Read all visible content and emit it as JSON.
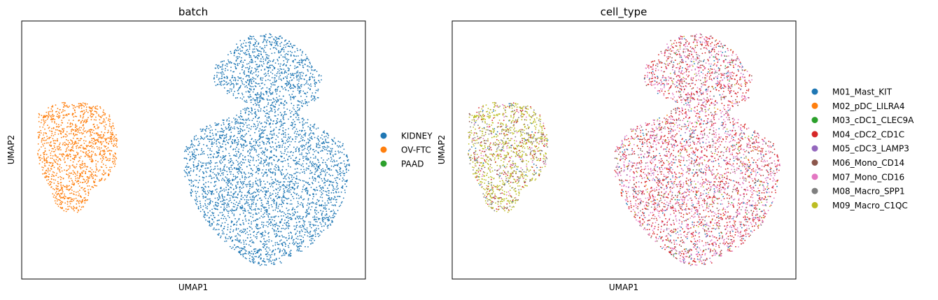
{
  "chart_data": [
    {
      "type": "scatter",
      "title": "batch",
      "xlabel": "UMAP1",
      "ylabel": "UMAP2",
      "grid": false,
      "legend_position": "right",
      "series": [
        {
          "name": "KIDNEY",
          "color": "#1f77b4"
        },
        {
          "name": "OV-FTC",
          "color": "#ff7f0e"
        },
        {
          "name": "PAAD",
          "color": "#2ca02c"
        }
      ],
      "clusters": [
        {
          "series": "OV-FTC",
          "x_range": [
            -8,
            -3
          ],
          "y_range": [
            -4,
            5
          ]
        },
        {
          "series": "KIDNEY",
          "x_range": [
            5,
            22
          ],
          "y_range": [
            -9,
            11
          ]
        }
      ]
    },
    {
      "type": "scatter",
      "title": "cell_type",
      "xlabel": "UMAP1",
      "ylabel": "UMAP2",
      "grid": false,
      "legend_position": "right",
      "series": [
        {
          "name": "M01_Mast_KIT",
          "color": "#1f77b4"
        },
        {
          "name": "M02_pDC_LILRA4",
          "color": "#ff7f0e"
        },
        {
          "name": "M03_cDC1_CLEC9A",
          "color": "#2ca02c"
        },
        {
          "name": "M04_cDC2_CD1C",
          "color": "#d62728"
        },
        {
          "name": "M05_cDC3_LAMP3",
          "color": "#9467bd"
        },
        {
          "name": "M06_Mono_CD14",
          "color": "#8c564b"
        },
        {
          "name": "M07_Mono_CD16",
          "color": "#e377c2"
        },
        {
          "name": "M08_Macro_SPP1",
          "color": "#7f7f7f"
        },
        {
          "name": "M09_Macro_C1QC",
          "color": "#bcbd22"
        }
      ],
      "clusters": [
        {
          "dominant": [
            "M09_Macro_C1QC",
            "M08_Macro_SPP1"
          ],
          "x_range": [
            -8,
            -3
          ],
          "y_range": [
            -4,
            5
          ]
        },
        {
          "dominant": [
            "M04_cDC2_CD1C",
            "M07_Mono_CD16"
          ],
          "x_range": [
            5,
            22
          ],
          "y_range": [
            -9,
            11
          ]
        }
      ]
    }
  ]
}
